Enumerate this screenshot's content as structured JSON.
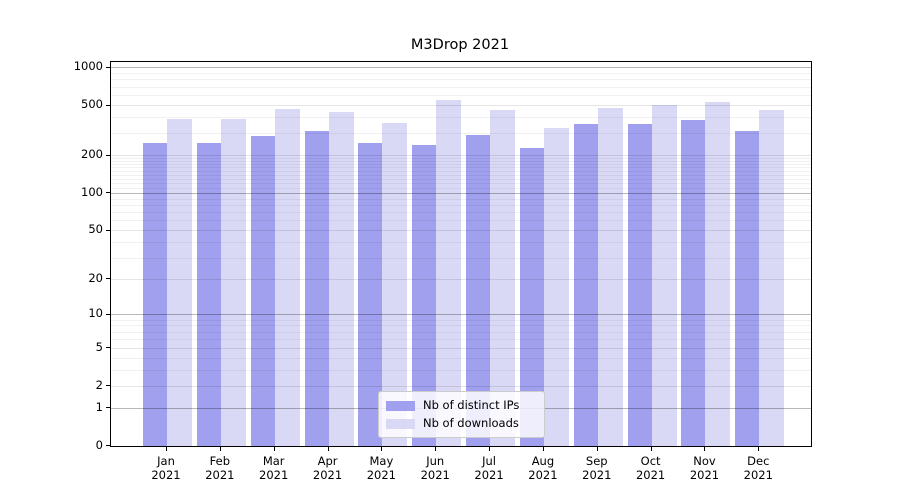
{
  "title": "M3Drop 2021",
  "legend": {
    "items": [
      {
        "label": "Nb of distinct IPs",
        "color": "#a0a0ee"
      },
      {
        "label": "Nb of downloads",
        "color": "#d9d9f6"
      }
    ]
  },
  "chart_data": {
    "type": "bar",
    "title": "M3Drop 2021",
    "categories": [
      "Jan 2021",
      "Feb 2021",
      "Mar 2021",
      "Apr 2021",
      "May 2021",
      "Jun 2021",
      "Jul 2021",
      "Aug 2021",
      "Sep 2021",
      "Oct 2021",
      "Nov 2021",
      "Dec 2021"
    ],
    "x_tick_line1": [
      "Jan",
      "Feb",
      "Mar",
      "Apr",
      "May",
      "Jun",
      "Jul",
      "Aug",
      "Sep",
      "Oct",
      "Nov",
      "Dec"
    ],
    "x_tick_line2": [
      "2021",
      "2021",
      "2021",
      "2021",
      "2021",
      "2021",
      "2021",
      "2021",
      "2021",
      "2021",
      "2021",
      "2021"
    ],
    "series": [
      {
        "name": "Nb of distinct IPs",
        "color": "#a0a0ee",
        "values": [
          250,
          254,
          287,
          315,
          251,
          241,
          290,
          228,
          355,
          356,
          383,
          315
        ]
      },
      {
        "name": "Nb of downloads",
        "color": "#d9d9f6",
        "values": [
          391,
          389,
          466,
          445,
          365,
          554,
          461,
          330,
          476,
          503,
          530,
          458
        ]
      }
    ],
    "xlabel": "",
    "ylabel": "",
    "y_scale": "log1p",
    "ylim": [
      0,
      1090
    ],
    "y_ticks": [
      1000,
      500,
      200,
      100,
      50,
      20,
      10,
      5,
      2,
      1,
      0
    ],
    "y_tick_labels": [
      "1000",
      "500",
      "200",
      "100",
      "50",
      "20",
      "10",
      "5",
      "2",
      "1",
      "0"
    ],
    "y_minor_gridlines": [
      3,
      4,
      6,
      7,
      8,
      9,
      30,
      40,
      60,
      70,
      80,
      90,
      110,
      120,
      130,
      140,
      150,
      160,
      170,
      180,
      190,
      300,
      400,
      600,
      700,
      800,
      900
    ],
    "grid": true,
    "legend_position": "bottom-center"
  }
}
